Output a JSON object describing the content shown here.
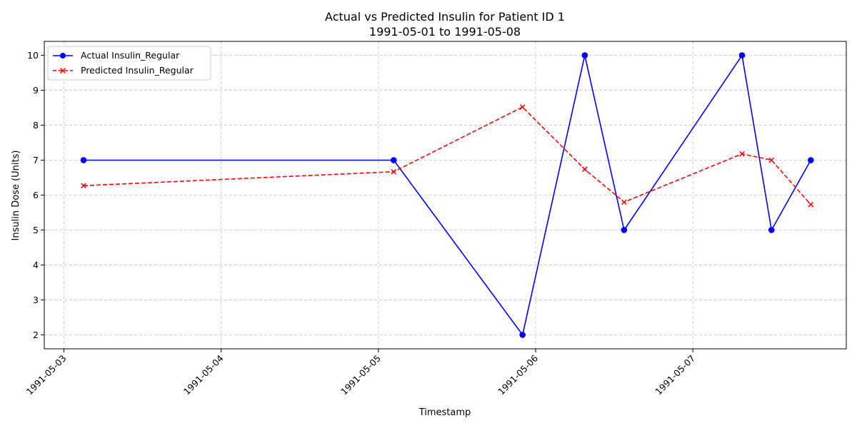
{
  "chart_data": {
    "type": "line",
    "title": "Actual vs Predicted Insulin for Patient ID 1",
    "subtitle": "1991-05-01 to 1991-05-08",
    "xlabel": "Timestamp",
    "ylabel": "Insulin Dose (Units)",
    "x_axis_type": "datetime",
    "xlim": [
      "1991-05-02T21:00",
      "1991-05-07T23:25"
    ],
    "ylim": [
      1.6,
      10.4
    ],
    "x_ticks": [
      "1991-05-03",
      "1991-05-04",
      "1991-05-05",
      "1991-05-06",
      "1991-05-07"
    ],
    "y_ticks": [
      2,
      3,
      4,
      5,
      6,
      7,
      8,
      9,
      10
    ],
    "grid": true,
    "legend_position": "top-left",
    "x": [
      "1991-05-03T03:00",
      "1991-05-05T02:20",
      "1991-05-05T22:00",
      "1991-05-06T07:30",
      "1991-05-06T13:30",
      "1991-05-07T07:30",
      "1991-05-07T12:00",
      "1991-05-07T18:00"
    ],
    "series": [
      {
        "name": "Actual Insulin_Regular",
        "color": "#0000ff",
        "line_style": "solid",
        "marker": "circle",
        "values": [
          7,
          7,
          2,
          10,
          5,
          10,
          5,
          7
        ]
      },
      {
        "name": "Predicted Insulin_Regular",
        "color": "#ff0000",
        "line_style": "dashed",
        "marker": "x",
        "values": [
          6.27,
          6.67,
          8.52,
          6.74,
          5.8,
          7.18,
          7.0,
          5.73
        ]
      }
    ]
  }
}
